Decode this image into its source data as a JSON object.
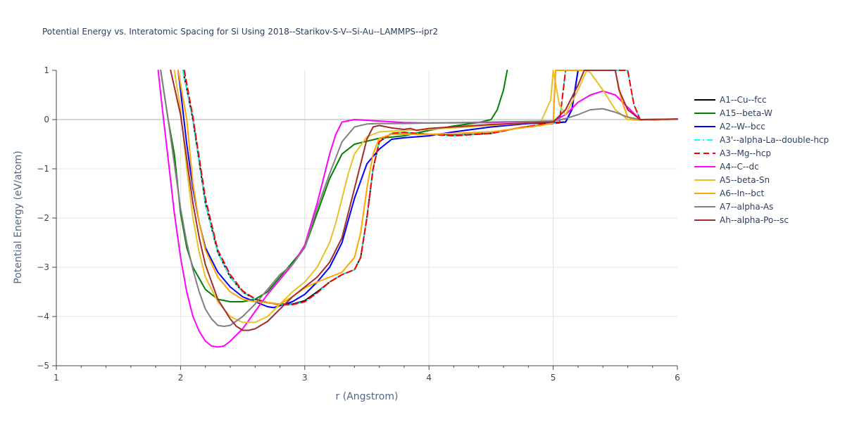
{
  "chart_data": {
    "type": "line",
    "title": "Potential Energy vs. Interatomic Spacing for Si Using 2018--Starikov-S-V--Si-Au--LAMMPS--ipr2",
    "xlabel": "r (Angstrom)",
    "ylabel": "Potential Energy (eV/atom)",
    "xlim": [
      1,
      6
    ],
    "ylim": [
      -5,
      1
    ],
    "xticks": [
      "1",
      "2",
      "3",
      "4",
      "5",
      "6"
    ],
    "yticks": [
      "−5",
      "−4",
      "−3",
      "−2",
      "−1",
      "0",
      "1"
    ],
    "grid": true,
    "legend_position": "right",
    "series": [
      {
        "name": "A1--Cu--fcc",
        "color": "#000000",
        "dash": "solid",
        "x": [
          2.02,
          2.1,
          2.2,
          2.3,
          2.4,
          2.5,
          2.6,
          2.7,
          2.8,
          2.9,
          3.0,
          3.1,
          3.2,
          3.3,
          3.4,
          3.45,
          3.5,
          3.55,
          3.6,
          3.7,
          3.8,
          3.9,
          4.0,
          4.2,
          4.5,
          4.7,
          4.9,
          5.0,
          5.05,
          5.1,
          5.15,
          5.2
        ],
        "y": [
          1.0,
          0.0,
          -1.7,
          -2.7,
          -3.2,
          -3.5,
          -3.65,
          -3.72,
          -3.75,
          -3.75,
          -3.68,
          -3.5,
          -3.3,
          -3.15,
          -3.05,
          -2.8,
          -2.0,
          -1.0,
          -0.45,
          -0.28,
          -0.26,
          -0.28,
          -0.3,
          -0.32,
          -0.28,
          -0.18,
          -0.1,
          -0.07,
          -0.06,
          -0.05,
          0.2,
          1.0
        ]
      },
      {
        "name": "A15--beta-W",
        "color": "#008000",
        "dash": "solid",
        "x": [
          1.84,
          1.9,
          1.95,
          2.0,
          2.05,
          2.1,
          2.2,
          2.3,
          2.4,
          2.5,
          2.6,
          2.7,
          2.8,
          2.9,
          3.0,
          3.1,
          3.2,
          3.3,
          3.4,
          3.6,
          3.8,
          4.0,
          4.2,
          4.4,
          4.5,
          4.55,
          4.6,
          4.63
        ],
        "y": [
          1.0,
          0.0,
          -0.7,
          -1.9,
          -2.6,
          -3.0,
          -3.45,
          -3.65,
          -3.7,
          -3.7,
          -3.65,
          -3.5,
          -3.2,
          -2.9,
          -2.6,
          -1.9,
          -1.2,
          -0.7,
          -0.5,
          -0.38,
          -0.33,
          -0.22,
          -0.13,
          -0.06,
          0.0,
          0.2,
          0.6,
          1.0
        ]
      },
      {
        "name": "A2--W--bcc",
        "color": "#0000ff",
        "dash": "solid",
        "x": [
          1.98,
          2.0,
          2.05,
          2.1,
          2.15,
          2.2,
          2.3,
          2.4,
          2.5,
          2.6,
          2.7,
          2.75,
          2.8,
          2.9,
          3.0,
          3.1,
          3.2,
          3.3,
          3.4,
          3.5,
          3.6,
          3.7,
          3.8,
          4.0,
          4.2,
          4.5,
          4.8,
          5.0,
          5.1,
          5.15,
          5.2
        ],
        "y": [
          1.0,
          0.6,
          -0.5,
          -1.4,
          -2.1,
          -2.6,
          -3.1,
          -3.4,
          -3.6,
          -3.7,
          -3.8,
          -3.82,
          -3.78,
          -3.7,
          -3.55,
          -3.3,
          -3.0,
          -2.5,
          -1.6,
          -0.9,
          -0.6,
          -0.4,
          -0.37,
          -0.33,
          -0.25,
          -0.15,
          -0.08,
          -0.06,
          -0.05,
          0.2,
          1.0
        ]
      },
      {
        "name": "A3'--alpha-La--double-hcp",
        "color": "#00ffff",
        "dash": "dashdot",
        "x": [
          2.02,
          2.1,
          2.2,
          2.3,
          2.4,
          2.5,
          2.6,
          2.7,
          2.8,
          2.9,
          3.0,
          3.1,
          3.2,
          3.3,
          3.4,
          3.45,
          3.5,
          3.55,
          3.6,
          3.7,
          3.8,
          3.9,
          4.0,
          4.2,
          4.5,
          4.7,
          4.9,
          5.0,
          5.05,
          5.1,
          5.6,
          5.65,
          5.7,
          5.8,
          6.0
        ],
        "y": [
          1.0,
          0.0,
          -1.7,
          -2.7,
          -3.2,
          -3.5,
          -3.65,
          -3.72,
          -3.76,
          -3.76,
          -3.7,
          -3.52,
          -3.3,
          -3.15,
          -3.05,
          -2.8,
          -2.0,
          -1.0,
          -0.45,
          -0.28,
          -0.26,
          -0.28,
          -0.3,
          -0.33,
          -0.28,
          -0.18,
          -0.1,
          -0.08,
          -0.07,
          1.0,
          1.0,
          0.3,
          0.0,
          -0.01,
          0.01
        ]
      },
      {
        "name": "A3--Mg--hcp",
        "color": "#ff0000",
        "dash": "dash",
        "x": [
          2.03,
          2.1,
          2.2,
          2.3,
          2.4,
          2.5,
          2.6,
          2.7,
          2.8,
          2.9,
          3.0,
          3.1,
          3.2,
          3.3,
          3.4,
          3.45,
          3.5,
          3.55,
          3.6,
          3.7,
          3.8,
          3.9,
          4.0,
          4.2,
          4.5,
          4.7,
          4.9,
          5.0,
          5.05,
          5.1,
          5.6,
          5.65,
          5.7,
          5.8,
          6.0
        ],
        "y": [
          1.0,
          0.05,
          -1.6,
          -2.65,
          -3.15,
          -3.48,
          -3.64,
          -3.72,
          -3.76,
          -3.76,
          -3.7,
          -3.52,
          -3.3,
          -3.15,
          -3.05,
          -2.8,
          -2.0,
          -1.0,
          -0.45,
          -0.28,
          -0.26,
          -0.28,
          -0.3,
          -0.33,
          -0.28,
          -0.18,
          -0.1,
          -0.08,
          -0.07,
          1.0,
          1.0,
          0.3,
          0.0,
          -0.01,
          0.01
        ]
      },
      {
        "name": "A4--C--dc",
        "color": "#ff00ff",
        "dash": "solid",
        "x": [
          1.82,
          1.85,
          1.9,
          1.95,
          2.0,
          2.05,
          2.1,
          2.15,
          2.2,
          2.25,
          2.3,
          2.35,
          2.4,
          2.5,
          2.6,
          2.7,
          2.8,
          2.9,
          3.0,
          3.1,
          3.15,
          3.2,
          3.25,
          3.3,
          3.4,
          3.6,
          3.8,
          4.0,
          4.5,
          5.0,
          5.1,
          5.2,
          5.3,
          5.4,
          5.5,
          5.6,
          5.7,
          5.8,
          6.0
        ],
        "y": [
          1.0,
          0.3,
          -0.8,
          -1.9,
          -2.8,
          -3.5,
          -4.0,
          -4.3,
          -4.5,
          -4.6,
          -4.62,
          -4.6,
          -4.5,
          -4.25,
          -3.9,
          -3.55,
          -3.25,
          -2.95,
          -2.55,
          -1.7,
          -1.2,
          -0.7,
          -0.3,
          -0.05,
          0.0,
          -0.03,
          -0.06,
          -0.07,
          -0.06,
          -0.03,
          0.1,
          0.35,
          0.5,
          0.58,
          0.5,
          0.25,
          0.0,
          0.0,
          0.01
        ]
      },
      {
        "name": "A5--beta-Sn",
        "color": "#e6c229",
        "dash": "solid",
        "x": [
          1.95,
          2.0,
          2.05,
          2.1,
          2.15,
          2.2,
          2.3,
          2.4,
          2.5,
          2.6,
          2.7,
          2.8,
          2.9,
          3.0,
          3.1,
          3.2,
          3.25,
          3.3,
          3.35,
          3.4,
          3.5,
          3.6,
          3.8,
          4.0,
          4.5,
          4.9,
          4.98,
          5.0,
          5.05,
          5.1,
          5.2,
          5.27,
          5.3,
          5.4,
          5.5,
          5.6,
          5.7,
          6.0
        ],
        "y": [
          1.0,
          0.2,
          -1.0,
          -2.0,
          -2.7,
          -3.2,
          -3.7,
          -4.0,
          -4.12,
          -4.12,
          -4.0,
          -3.75,
          -3.5,
          -3.3,
          -3.0,
          -2.5,
          -2.1,
          -1.6,
          -1.1,
          -0.7,
          -0.35,
          -0.25,
          -0.22,
          -0.2,
          -0.12,
          -0.05,
          0.4,
          1.0,
          0.3,
          0.1,
          0.6,
          1.0,
          0.95,
          0.6,
          0.2,
          0.0,
          -0.01,
          0.01
        ]
      },
      {
        "name": "A6--In--bct",
        "color": "#ffa500",
        "dash": "solid",
        "x": [
          1.98,
          2.05,
          2.1,
          2.15,
          2.2,
          2.3,
          2.4,
          2.5,
          2.6,
          2.7,
          2.8,
          2.9,
          3.0,
          3.1,
          3.2,
          3.3,
          3.4,
          3.45,
          3.5,
          3.55,
          3.6,
          3.7,
          3.8,
          4.0,
          4.5,
          4.9,
          5.0,
          5.02,
          5.08,
          5.4,
          5.5,
          5.55,
          5.6,
          5.65,
          5.7,
          6.0
        ],
        "y": [
          1.0,
          0.0,
          -1.3,
          -2.1,
          -2.65,
          -3.2,
          -3.5,
          -3.65,
          -3.7,
          -3.72,
          -3.75,
          -3.6,
          -3.42,
          -3.3,
          -3.2,
          -3.1,
          -2.8,
          -2.3,
          -1.4,
          -0.7,
          -0.38,
          -0.3,
          -0.3,
          -0.3,
          -0.25,
          -0.12,
          -0.07,
          1.0,
          1.0,
          1.0,
          1.0,
          0.4,
          0.05,
          0.0,
          -0.01,
          0.01
        ]
      },
      {
        "name": "A7--alpha-As",
        "color": "#808080",
        "dash": "solid",
        "x": [
          1.84,
          1.9,
          1.95,
          2.0,
          2.05,
          2.1,
          2.15,
          2.2,
          2.25,
          2.3,
          2.35,
          2.4,
          2.5,
          2.6,
          2.7,
          2.8,
          2.9,
          3.0,
          3.1,
          3.2,
          3.3,
          3.4,
          3.5,
          3.6,
          3.8,
          4.0,
          4.5,
          5.0,
          5.1,
          5.2,
          5.3,
          5.4,
          5.5,
          5.6,
          5.7,
          6.0
        ],
        "y": [
          1.0,
          0.0,
          -0.9,
          -1.8,
          -2.5,
          -3.05,
          -3.5,
          -3.85,
          -4.05,
          -4.18,
          -4.2,
          -4.18,
          -4.0,
          -3.75,
          -3.45,
          -3.15,
          -2.95,
          -2.6,
          -1.8,
          -1.1,
          -0.45,
          -0.15,
          -0.09,
          -0.08,
          -0.08,
          -0.07,
          -0.05,
          -0.03,
          0.02,
          0.1,
          0.2,
          0.22,
          0.15,
          0.05,
          0.0,
          0.01
        ]
      },
      {
        "name": "Ah--alpha-Po--sc",
        "color": "#a52a2a",
        "dash": "solid",
        "x": [
          1.92,
          2.0,
          2.05,
          2.1,
          2.15,
          2.2,
          2.3,
          2.4,
          2.45,
          2.5,
          2.55,
          2.6,
          2.7,
          2.8,
          2.9,
          3.0,
          3.1,
          3.2,
          3.3,
          3.4,
          3.5,
          3.55,
          3.6,
          3.7,
          3.8,
          3.85,
          3.9,
          4.0,
          4.5,
          5.0,
          5.1,
          5.2,
          5.25,
          5.5,
          5.53,
          5.6,
          5.7,
          6.0
        ],
        "y": [
          1.0,
          0.1,
          -0.8,
          -1.7,
          -2.4,
          -2.95,
          -3.65,
          -4.05,
          -4.2,
          -4.28,
          -4.28,
          -4.25,
          -4.1,
          -3.85,
          -3.6,
          -3.4,
          -3.2,
          -2.9,
          -2.4,
          -1.4,
          -0.4,
          -0.15,
          -0.12,
          -0.17,
          -0.2,
          -0.18,
          -0.22,
          -0.18,
          -0.1,
          -0.05,
          0.2,
          0.7,
          1.0,
          1.0,
          0.6,
          0.2,
          0.0,
          0.01
        ]
      }
    ]
  }
}
